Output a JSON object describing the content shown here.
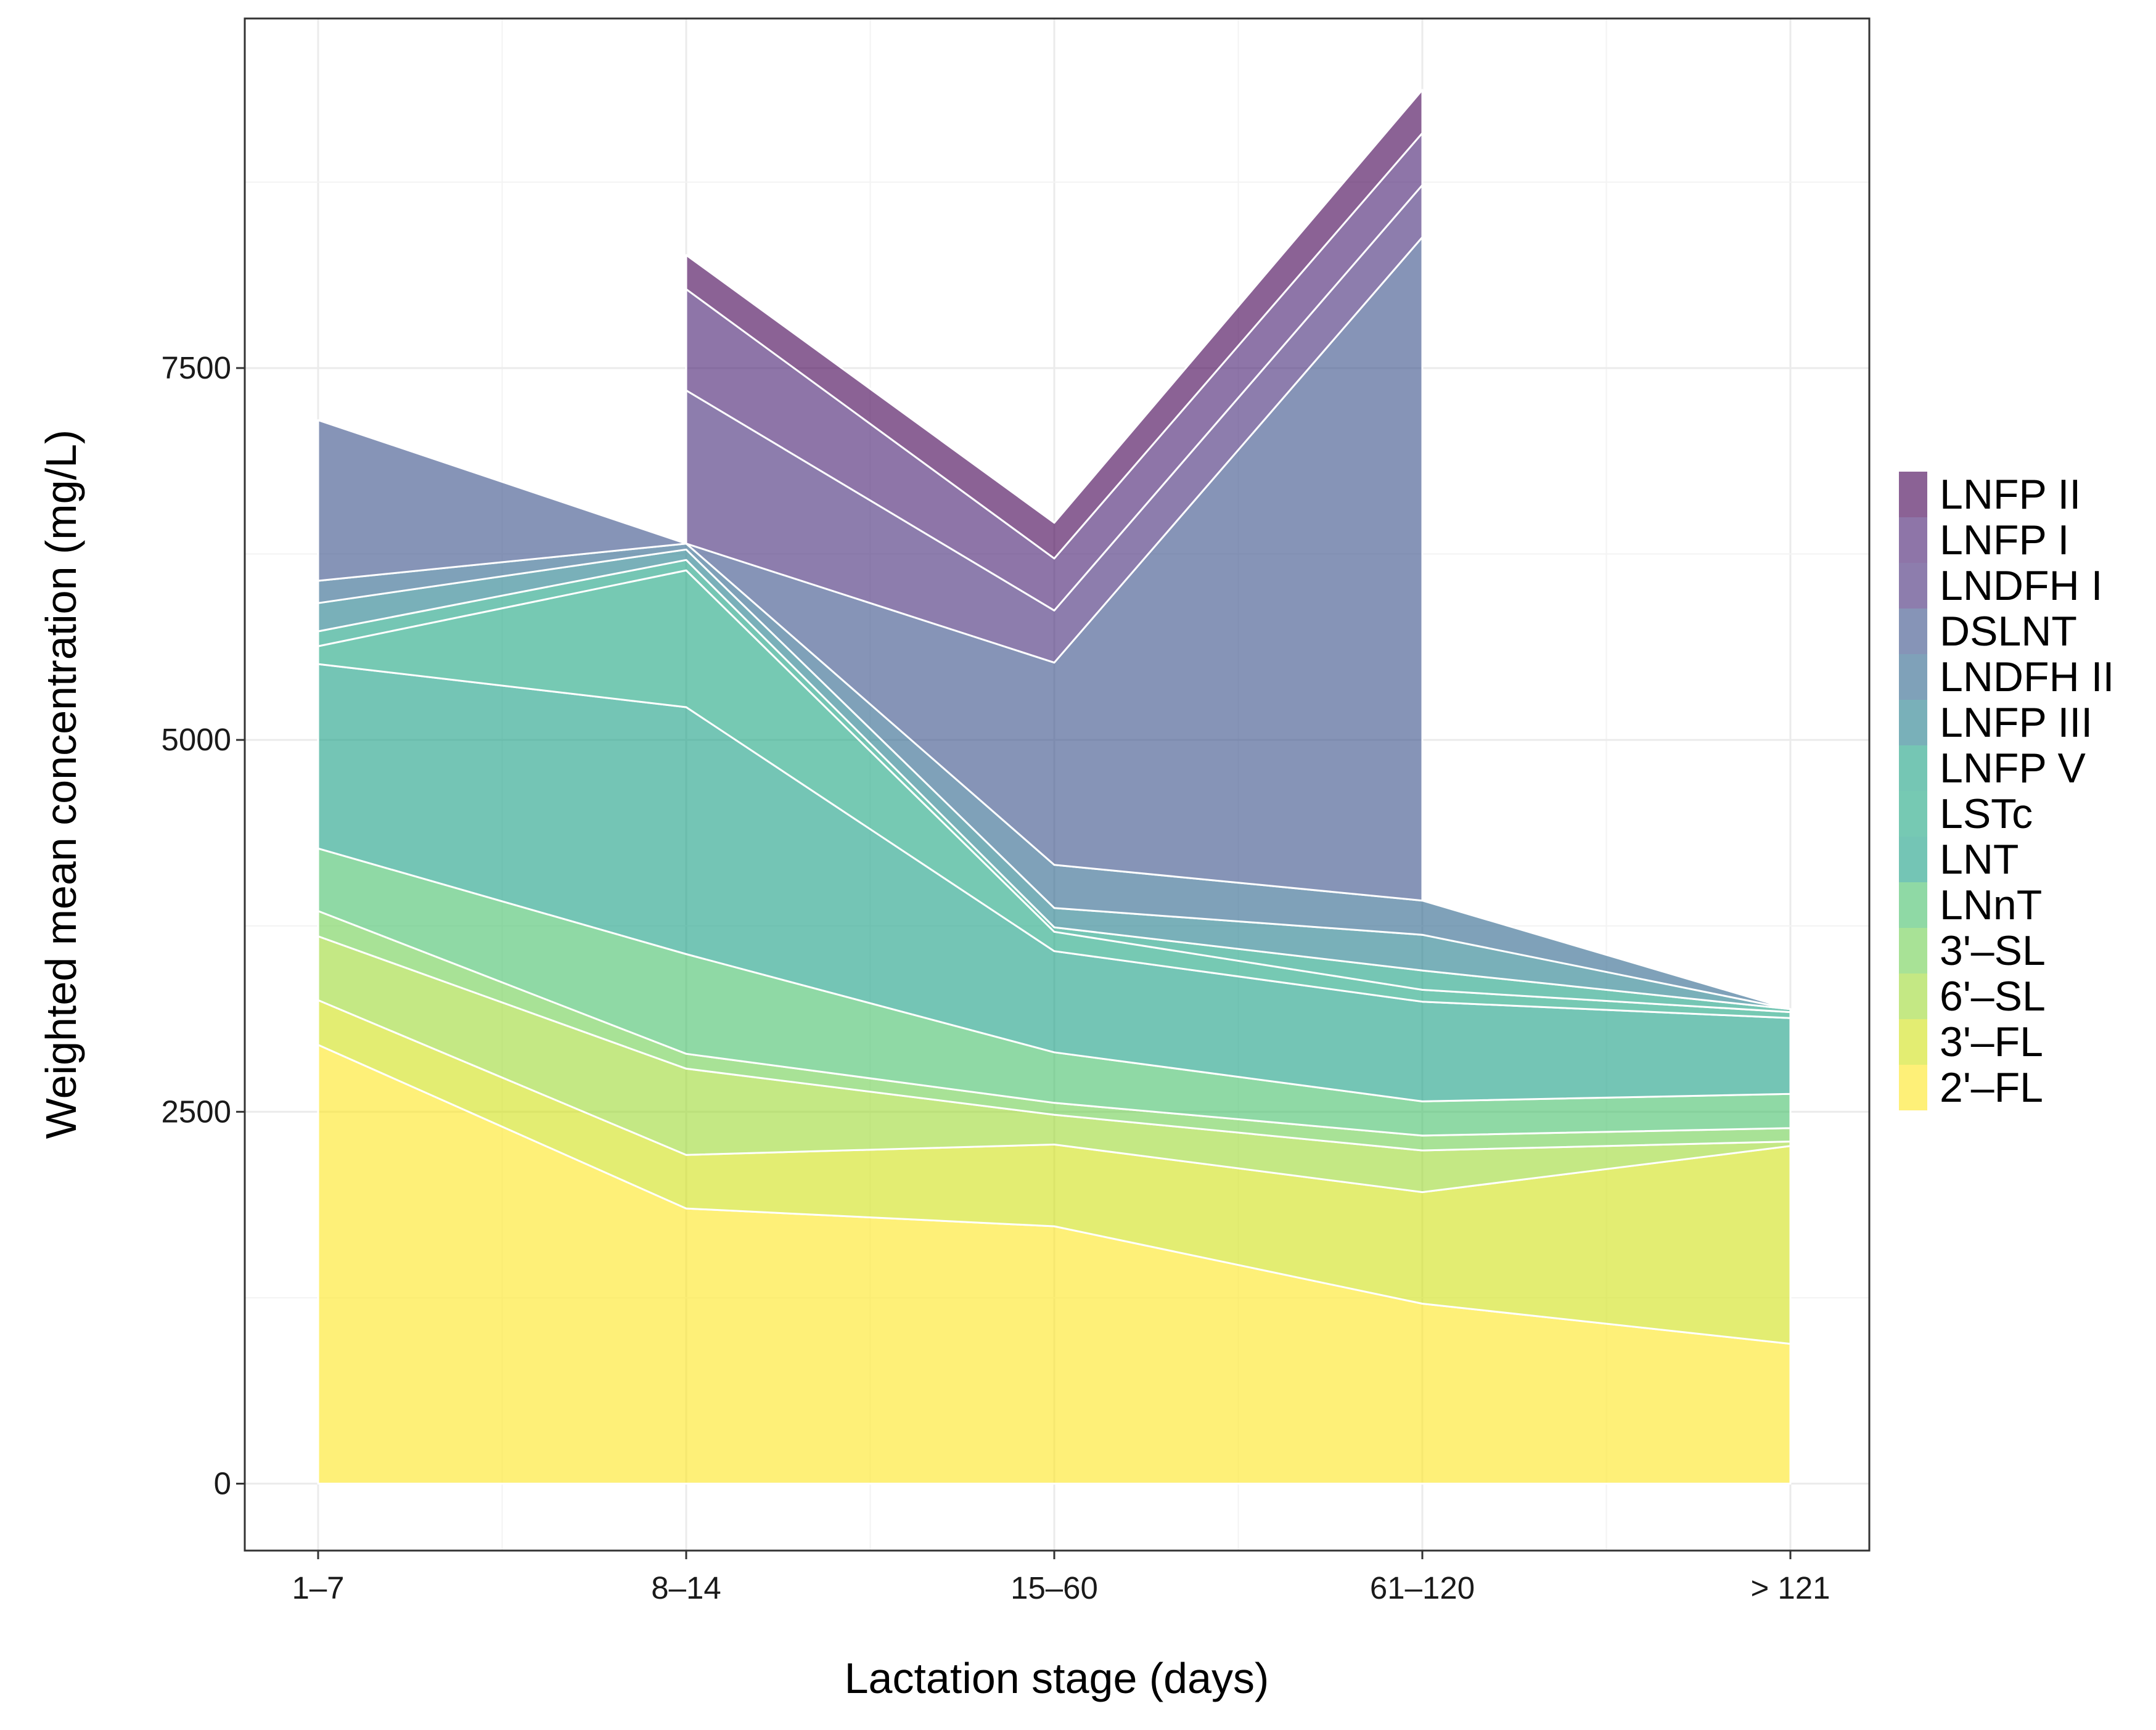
{
  "chart_data": {
    "type": "area",
    "stacked": true,
    "title": "",
    "xlabel": "Lactation stage (days)",
    "ylabel": "Weighted mean concentration (mg/L)",
    "categories": [
      "1–7",
      "8–14",
      "15–60",
      "61–120",
      "> 121"
    ],
    "ylim": [
      -450,
      9850
    ],
    "yticks": [
      0,
      2500,
      5000,
      7500
    ],
    "grid": true,
    "legend_position": "right",
    "stack_order": "first series at the bottom",
    "series": [
      {
        "name": "2'–FL",
        "color": "#FDE725",
        "values": [
          2950,
          1850,
          1730,
          1210,
          940
        ]
      },
      {
        "name": "3'–FL",
        "color": "#D2E21B",
        "values": [
          300,
          360,
          550,
          750,
          1330
        ]
      },
      {
        "name": "6'–SL",
        "color": "#A0DA39",
        "values": [
          430,
          580,
          200,
          280,
          30
        ]
      },
      {
        "name": "3'–SL",
        "color": "#73D056",
        "values": [
          170,
          100,
          80,
          100,
          90
        ]
      },
      {
        "name": "LNnT",
        "color": "#4AC16D",
        "values": [
          420,
          670,
          340,
          230,
          230
        ]
      },
      {
        "name": "LNT",
        "color": "#1FA187",
        "values": [
          1240,
          1660,
          680,
          670,
          510
        ]
      },
      {
        "name": "LSTc",
        "color": "#22A884",
        "values": [
          120,
          920,
          130,
          80,
          40
        ]
      },
      {
        "name": "LNFP V",
        "color": "#20A386",
        "values": [
          100,
          70,
          30,
          130,
          20
        ]
      },
      {
        "name": "LNFP III",
        "color": "#277F8E",
        "values": [
          190,
          70,
          130,
          240,
          0
        ]
      },
      {
        "name": "LNDFH II",
        "color": "#31688E",
        "values": [
          150,
          40,
          290,
          230,
          0
        ]
      },
      {
        "name": "DSLNT",
        "color": "#3B528B",
        "values": [
          1080,
          0,
          1360,
          4460,
          null
        ]
      },
      {
        "name": "LNDFH I",
        "color": "#472D7B",
        "values": [
          null,
          1030,
          350,
          350,
          null
        ]
      },
      {
        "name": "LNFP I",
        "color": "#482173",
        "values": [
          null,
          680,
          350,
          350,
          null
        ]
      },
      {
        "name": "LNFP II",
        "color": "#440154",
        "values": [
          null,
          230,
          240,
          290,
          null
        ]
      }
    ]
  }
}
